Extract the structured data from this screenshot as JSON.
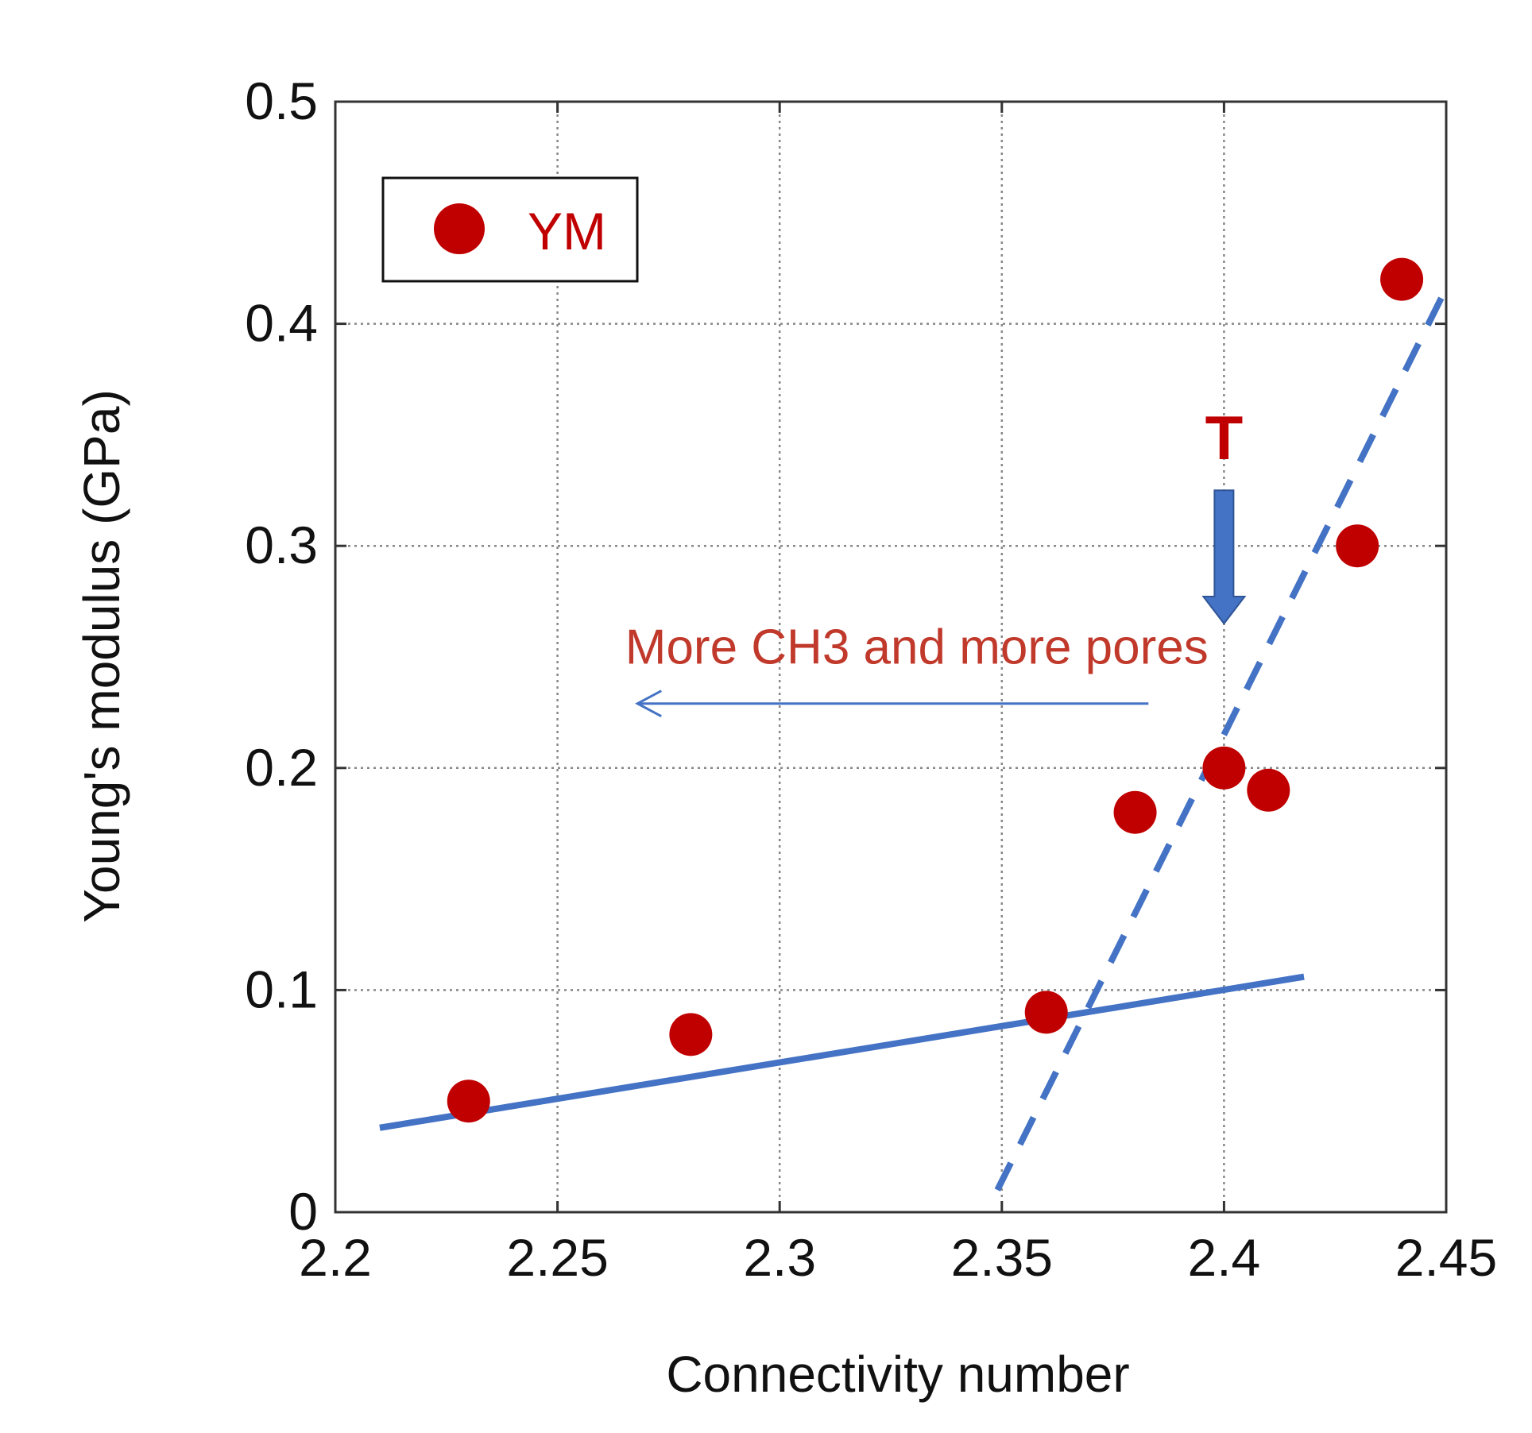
{
  "chart_data": {
    "type": "scatter",
    "title": "",
    "xlabel": "Connectivity number",
    "ylabel": "Young's modulus (GPa)",
    "xlim": [
      2.2,
      2.45
    ],
    "ylim": [
      0,
      0.5
    ],
    "xticks": [
      2.2,
      2.25,
      2.3,
      2.35,
      2.4,
      2.45
    ],
    "xtick_labels": [
      "2.2",
      "2.25",
      "2.3",
      "2.35",
      "2.4",
      "2.45"
    ],
    "yticks": [
      0,
      0.1,
      0.2,
      0.3,
      0.4,
      0.5
    ],
    "ytick_labels": [
      "0",
      "0.1",
      "0.2",
      "0.3",
      "0.4",
      "0.5"
    ],
    "grid": true,
    "legend_position": "top-left",
    "series": [
      {
        "name": "YM",
        "color": "#c00000",
        "x": [
          2.23,
          2.28,
          2.36,
          2.38,
          2.4,
          2.41,
          2.43,
          2.44
        ],
        "y": [
          0.05,
          0.08,
          0.09,
          0.18,
          0.2,
          0.19,
          0.3,
          0.42
        ]
      }
    ],
    "trend_lines": [
      {
        "style": "solid",
        "color": "#4472c4",
        "x": [
          2.21,
          2.418
        ],
        "y": [
          0.038,
          0.106
        ]
      },
      {
        "style": "dashed",
        "color": "#4472c4",
        "x": [
          2.349,
          2.449
        ],
        "y": [
          0.01,
          0.412
        ]
      }
    ],
    "annotations": {
      "arrow_text": "More CH3 and more pores",
      "arrow_text_color": "#c0392b",
      "arrow_color": "#4472c4",
      "arrow_from": [
        2.383,
        0.229
      ],
      "arrow_to": [
        2.268,
        0.229
      ],
      "transition_label": "T",
      "transition_label_color": "#c00000",
      "transition_x": 2.4,
      "transition_arrow_color": "#4472c4",
      "transition_arrow_y": [
        0.325,
        0.265
      ]
    }
  }
}
